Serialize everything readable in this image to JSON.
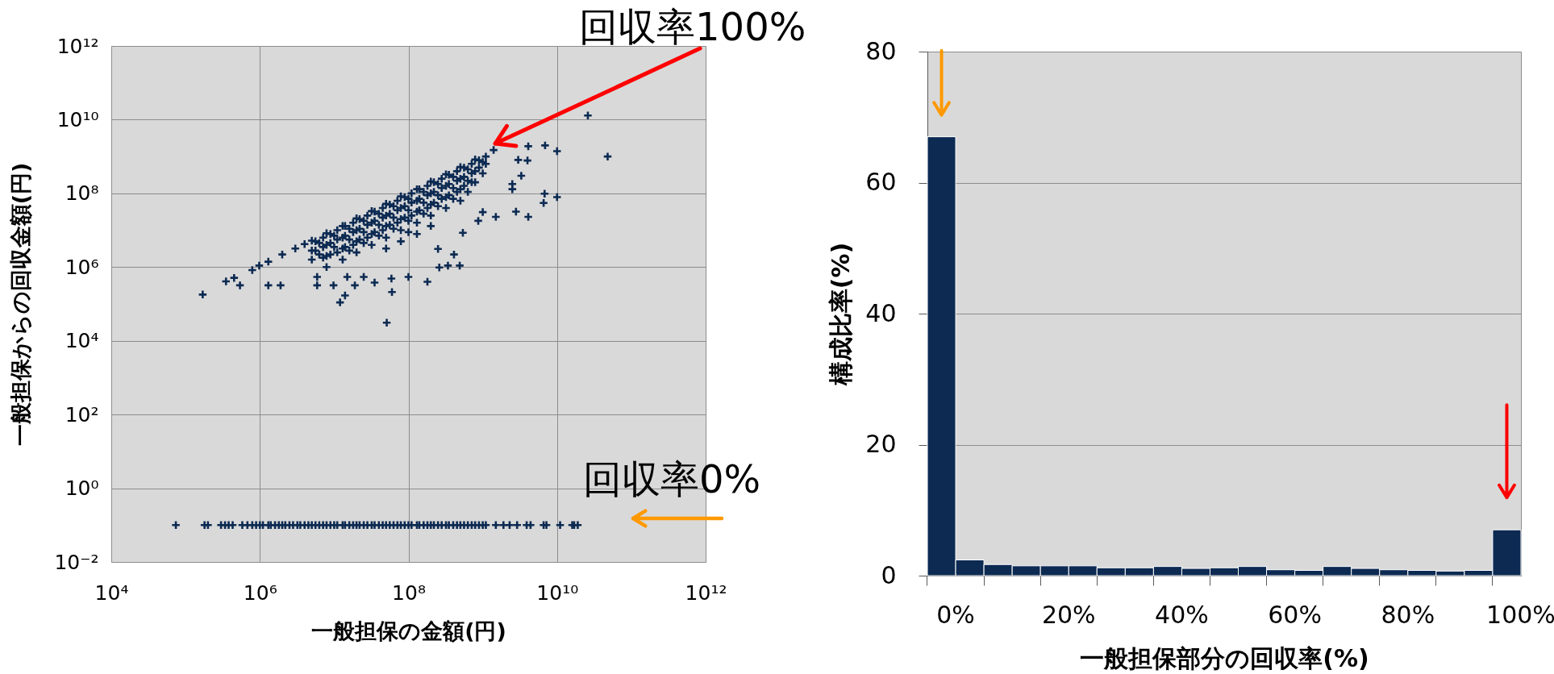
{
  "chart_data": [
    {
      "type": "scatter",
      "xlabel": "一般担保の金額(円)",
      "ylabel": "一般担保からの回収金額(円)",
      "log": "xy",
      "marker": "cross",
      "color": "#0c2a52",
      "grid": true,
      "xlim": [
        10000.0,
        1000000000000.0
      ],
      "ylim": [
        0.01,
        1000000000000.0
      ],
      "xticks": [
        {
          "value": 10000.0,
          "label": "10⁴"
        },
        {
          "value": 1000000.0,
          "label": "10⁶"
        },
        {
          "value": 100000000.0,
          "label": "10⁸"
        },
        {
          "value": 10000000000.0,
          "label": "10¹⁰"
        },
        {
          "value": 1000000000000.0,
          "label": "10¹²"
        }
      ],
      "yticks": [
        {
          "value": 0.01,
          "label": "10⁻²"
        },
        {
          "value": 1,
          "label": "10⁰"
        },
        {
          "value": 100.0,
          "label": "10²"
        },
        {
          "value": 10000.0,
          "label": "10⁴"
        },
        {
          "value": 1000000.0,
          "label": "10⁶"
        },
        {
          "value": 100000000.0,
          "label": "10⁸"
        },
        {
          "value": 10000000000.0,
          "label": "10¹⁰"
        },
        {
          "value": 1000000000000.0,
          "label": "10¹²"
        }
      ],
      "annotations": [
        {
          "text": "回収率100%",
          "x": 1400000000.0,
          "y": 1500000000.0
        },
        "回収率0%"
      ],
      "x": [
        26000000000.0,
        48000000000.0,
        4100000000.0,
        6900000000.0,
        10000000000.0,
        3000000000.0,
        4000000000.0,
        3300000000.0,
        2500000000.0,
        2500000000.0,
        6800000000.0,
        10000000000.0,
        6600000000.0,
        1500000000.0,
        2800000000.0,
        4100000000.0,
        1000000000.0,
        540000000.0,
        870000000.0,
        490000000.0,
        410000000.0,
        340000000.0,
        260000000.0,
        180000000.0,
        250000000.0,
        51000000.0,
        60000000.0,
        12000000.0,
        14000000.0,
        5900000.0,
        9800000.0,
        19000000.0,
        35000000.0,
        5900000.0,
        15000000.0,
        25000000.0,
        59000000.0,
        100000000.0,
        1300000.0,
        1900000.0,
        980000.0,
        1300000.0,
        2000000.0,
        3000000.0,
        4000000.0,
        170000.0,
        350000.0,
        450000.0,
        540000.0,
        790000.0,
        1400000000.0,
        5000000.0,
        5000000.0,
        5000000.0,
        6300000.0,
        6300000.0,
        7900000.0,
        7900000.0,
        7900000.0,
        7900000.0,
        10000000.0,
        10000000.0,
        13000000.0,
        13000000.0,
        13000000.0,
        13000000.0,
        16000000.0,
        16000000.0,
        16000000.0,
        20000000.0,
        20000000.0,
        20000000.0,
        20000000.0,
        25000000.0,
        25000000.0,
        25000000.0,
        32000000.0,
        32000000.0,
        32000000.0,
        32000000.0,
        40000000.0,
        40000000.0,
        40000000.0,
        50000000.0,
        50000000.0,
        50000000.0,
        50000000.0,
        50000000.0,
        63000000.0,
        63000000.0,
        63000000.0,
        79000000.0,
        79000000.0,
        79000000.0,
        79000000.0,
        79000000.0,
        100000000.0,
        100000000.0,
        100000000.0,
        100000000.0,
        130000000.0,
        130000000.0,
        130000000.0,
        130000000.0,
        130000000.0,
        160000000.0,
        160000000.0,
        160000000.0,
        200000000.0,
        200000000.0,
        200000000.0,
        200000000.0,
        200000000.0,
        250000000.0,
        250000000.0,
        250000000.0,
        320000000.0,
        320000000.0,
        320000000.0,
        320000000.0,
        400000000.0,
        400000000.0,
        400000000.0,
        500000000.0,
        500000000.0,
        500000000.0,
        500000000.0,
        630000000.0,
        630000000.0,
        630000000.0,
        790000000.0,
        790000000.0,
        790000000.0,
        1000000000.0,
        1000000000.0,
        5600000.0,
        5600000.0,
        7100000.0,
        7100000.0,
        7100000.0,
        8900000.0,
        8900000.0,
        8900000.0,
        11000000.0,
        11000000.0,
        11000000.0,
        14000000.0,
        14000000.0,
        14000000.0,
        18000000.0,
        18000000.0,
        18000000.0,
        22000000.0,
        22000000.0,
        22000000.0,
        28000000.0,
        28000000.0,
        28000000.0,
        35000000.0,
        35000000.0,
        35000000.0,
        45000000.0,
        45000000.0,
        45000000.0,
        56000000.0,
        56000000.0,
        56000000.0,
        71000000.0,
        71000000.0,
        71000000.0,
        89000000.0,
        89000000.0,
        89000000.0,
        110000000.0,
        110000000.0,
        110000000.0,
        140000000.0,
        140000000.0,
        140000000.0,
        180000000.0,
        180000000.0,
        180000000.0,
        220000000.0,
        220000000.0,
        220000000.0,
        280000000.0,
        280000000.0,
        280000000.0,
        350000000.0,
        350000000.0,
        350000000.0,
        450000000.0,
        450000000.0,
        450000000.0,
        560000000.0,
        560000000.0,
        560000000.0,
        710000000.0,
        710000000.0,
        710000000.0,
        890000000.0,
        890000000.0,
        1100000000.0,
        1100000000.0,
        74000.0,
        180000.0,
        200000.0,
        300000.0,
        340000.0,
        380000.0,
        430000.0,
        580000.0,
        680000.0,
        790000.0,
        1000000.0,
        1300000.0,
        1600000.0,
        2000000.0,
        2500000.0,
        3200000.0,
        4000000.0,
        5000000.0,
        6300000.0,
        7900000.0,
        10000000.0,
        13000000.0,
        16000000.0,
        20000000.0,
        25000000.0,
        32000000.0,
        40000000.0,
        50000000.0,
        63000000.0,
        79000000.0,
        100000000.0,
        130000000.0,
        160000000.0,
        200000000.0,
        250000000.0,
        320000000.0,
        400000000.0,
        500000000.0,
        630000000.0,
        790000000.0,
        1000000000.0,
        1100000000.0,
        1500000000.0,
        1900000000.0,
        2300000000.0,
        2900000000.0,
        3900000000.0,
        4400000000.0,
        6600000000.0,
        7200000000.0,
        11000000000.0,
        16000000000.0,
        17000000000.0,
        19000000000.0,
        890000.0,
        1100000.0,
        1400000.0,
        1800000.0,
        2200000.0,
        2800000.0,
        3500000.0,
        4500000.0,
        5600000.0,
        7100000.0,
        8900000.0,
        11000000.0,
        14000000.0,
        18000000.0,
        22000000.0,
        28000000.0,
        35000000.0,
        45000000.0,
        56000000.0,
        71000000.0,
        89000000.0,
        110000000.0,
        140000000.0,
        180000000.0,
        220000000.0,
        280000000.0,
        350000000.0,
        450000000.0,
        560000000.0,
        710000000.0,
        890000000.0
      ],
      "values": [
        13000000000.0,
        1000000000.0,
        1900000000.0,
        2000000000.0,
        1400000000.0,
        810000000.0,
        780000000.0,
        300000000.0,
        180000000.0,
        130000000.0,
        98000000.0,
        79000000.0,
        55000000.0,
        23000000.0,
        32000000.0,
        23000000.0,
        31000000.0,
        8500000.0,
        18000000.0,
        1100000.0,
        2200000.0,
        1100000.0,
        980000.0,
        400000.0,
        3100000.0,
        31000.0,
        210000.0,
        110000.0,
        170000.0,
        320000.0,
        320000.0,
        320000.0,
        380000.0,
        540000.0,
        540000.0,
        540000.0,
        490000.0,
        540000.0,
        320000.0,
        320000.0,
        1100000.0,
        1400000.0,
        2200000.0,
        3200000.0,
        4200000.0,
        180000.0,
        410000.0,
        510000.0,
        320000.0,
        830000.0,
        1500000000.0,
        5200000.0,
        2800000.0,
        1600000.0,
        4500000.0,
        2200000.0,
        8300000.0,
        4000000.0,
        2000000.0,
        1000000.0,
        7100000.0,
        3500000.0,
        13000000.0,
        6300000.0,
        3200000.0,
        1600000.0,
        11000000.0,
        5600000.0,
        2800000.0,
        21000000.0,
        10000000.0,
        5000000.0,
        2500000.0,
        18000000.0,
        8900000.0,
        4500000.0,
        33000000.0,
        16000000.0,
        7900000.0,
        4000000.0,
        28000000.0,
        14000000.0,
        7100000.0,
        52000000.0,
        25000000.0,
        13000000.0,
        6300000.0,
        3200000.0,
        45000000.0,
        22000000.0,
        11000000.0,
        83000000.0,
        40000000.0,
        20000000.0,
        10000000.0,
        5000000.0,
        71000000.0,
        35000000.0,
        18000000.0,
        8900000.0,
        130000000.0,
        63000000.0,
        32000000.0,
        16000000.0,
        7900000.0,
        110000000.0,
        56000000.0,
        28000000.0,
        210000000.0,
        100000000.0,
        50000000.0,
        25000000.0,
        13000000.0,
        180000000.0,
        89000000.0,
        45000000.0,
        330000000.0,
        160000000.0,
        79000000.0,
        40000000.0,
        280000000.0,
        140000000.0,
        71000000.0,
        520000000.0,
        250000000.0,
        130000000.0,
        63000000.0,
        450000000.0,
        220000000.0,
        110000000.0,
        830000000.0,
        400000000.0,
        200000000.0,
        710000000.0,
        350000000.0,
        5000000.0,
        2800000.0,
        6300000.0,
        3500000.0,
        1800000.0,
        7900000.0,
        4500000.0,
        2200000.0,
        10000000.0,
        5600000.0,
        2500000.0,
        13000000.0,
        7100000.0,
        3500000.0,
        16000000.0,
        8900000.0,
        4000000.0,
        20000000.0,
        11000000.0,
        5600000.0,
        25000000.0,
        14000000.0,
        6300000.0,
        32000000.0,
        18000000.0,
        8900000.0,
        40000000.0,
        22000000.0,
        10000000.0,
        50000000.0,
        28000000.0,
        14000000.0,
        63000000.0,
        35000000.0,
        16000000.0,
        79000000.0,
        45000000.0,
        22000000.0,
        100000000.0,
        56000000.0,
        25000000.0,
        130000000.0,
        71000000.0,
        35000000.0,
        160000000.0,
        89000000.0,
        40000000.0,
        200000000.0,
        110000000.0,
        56000000.0,
        250000000.0,
        140000000.0,
        71000000.0,
        320000000.0,
        180000000.0,
        89000000.0,
        400000000.0,
        220000000.0,
        110000000.0,
        500000000.0,
        280000000.0,
        160000000.0,
        630000000.0,
        350000000.0,
        200000000.0,
        790000000.0,
        500000000.0,
        1000000000.0,
        630000000.0,
        0.1,
        0.1,
        0.1,
        0.1,
        0.1,
        0.1,
        0.1,
        0.1,
        0.1,
        0.1,
        0.1,
        0.1,
        0.1,
        0.1,
        0.1,
        0.1,
        0.1,
        0.1,
        0.1,
        0.1,
        0.1,
        0.1,
        0.1,
        0.1,
        0.1,
        0.1,
        0.1,
        0.1,
        0.1,
        0.1,
        0.1,
        0.1,
        0.1,
        0.1,
        0.1,
        0.1,
        0.1,
        0.1,
        0.1,
        0.1,
        0.1,
        0.1,
        0.1,
        0.1,
        0.1,
        0.1,
        0.1,
        0.1,
        0.1,
        0.1,
        0.1,
        0.1,
        0.1,
        0.1,
        0.1,
        0.1,
        0.1,
        0.1,
        0.1,
        0.1,
        0.1,
        0.1,
        0.1,
        0.1,
        0.1,
        0.1,
        0.1,
        0.1,
        0.1,
        0.1,
        0.1,
        0.1,
        0.1,
        0.1,
        0.1,
        0.1,
        0.1,
        0.1,
        0.1,
        0.1,
        0.1,
        0.1,
        0.1,
        0.1,
        0.1
      ]
    },
    {
      "type": "bar",
      "xlabel": "一般担保部分の回収率(%)",
      "ylabel": "構成比率(%)",
      "color": "#0c2a52",
      "grid": "y",
      "categories": [
        "0%",
        null,
        null,
        null,
        "20%",
        null,
        null,
        null,
        "40%",
        null,
        null,
        null,
        "60%",
        null,
        null,
        null,
        "80%",
        null,
        null,
        null,
        "100%"
      ],
      "values": [
        67,
        2.4,
        1.7,
        1.5,
        1.5,
        1.5,
        1.2,
        1.2,
        1.4,
        1.1,
        1.2,
        1.4,
        0.9,
        0.8,
        1.4,
        1.1,
        0.9,
        0.8,
        0.7,
        0.8,
        7.0
      ],
      "ylim": [
        0,
        80
      ],
      "yticks": [
        0,
        20,
        40,
        60,
        80
      ]
    }
  ]
}
